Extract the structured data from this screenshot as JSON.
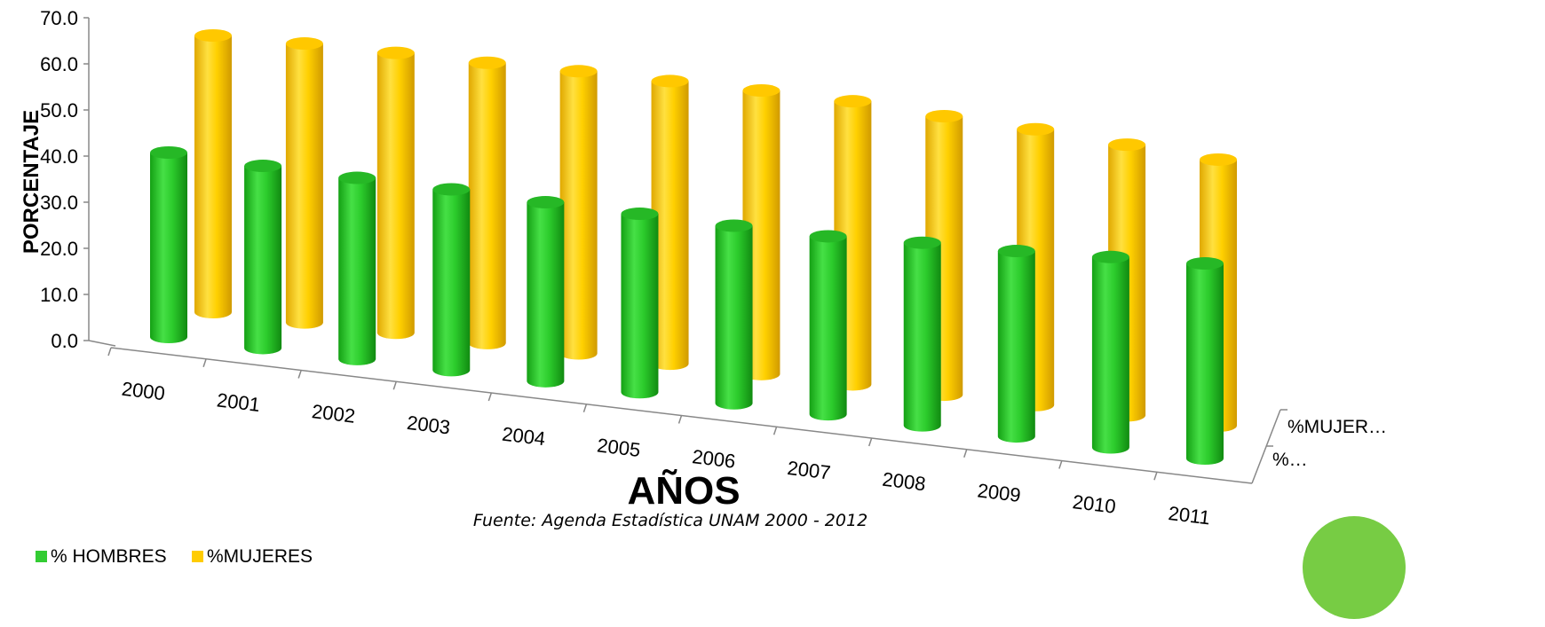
{
  "chart_data": {
    "type": "bar",
    "style": "3d-cylinder",
    "categories": [
      "2000",
      "2001",
      "2002",
      "2003",
      "2004",
      "2005",
      "2006",
      "2007",
      "2008",
      "2009",
      "2010",
      "2011"
    ],
    "series": [
      {
        "name": "% HOMBRES",
        "color": "#33cc33",
        "values": [
          40.0,
          39.5,
          39.3,
          39.2,
          38.8,
          38.7,
          38.5,
          38.6,
          39.6,
          40.2,
          41.3,
          42.3
        ]
      },
      {
        "name": "%MUJERES",
        "color": "#ffcc00",
        "values": [
          60.0,
          60.5,
          60.7,
          60.8,
          61.2,
          61.3,
          61.5,
          61.4,
          60.4,
          59.8,
          58.7,
          57.7
        ]
      }
    ],
    "ylabel": "PORCENTAJE",
    "xlabel": "AÑOS",
    "ylim": [
      0,
      70
    ],
    "yticks": [
      "0.0",
      "10.0",
      "20.0",
      "30.0",
      "40.0",
      "50.0",
      "60.0",
      "70.0"
    ],
    "depth_labels": [
      "%MUJER…",
      "%…"
    ],
    "legend": "bottom-left",
    "grid": false
  },
  "source": "Fuente: Agenda Estadística UNAM 2000 - 2012",
  "decoration_color": "#77cc44"
}
